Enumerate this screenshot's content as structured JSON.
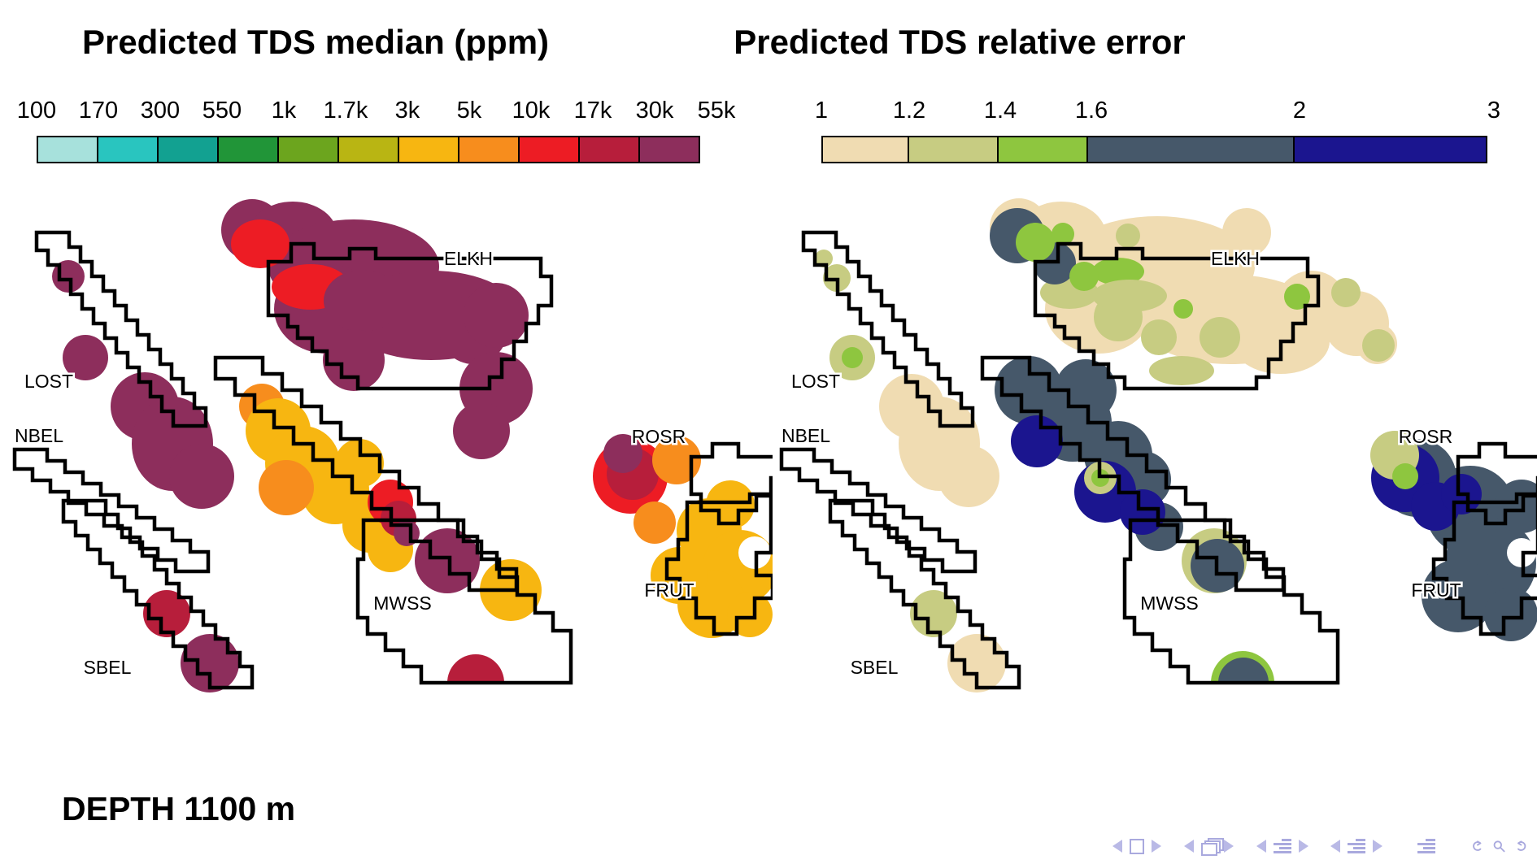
{
  "slide": {
    "depth_label": "DEPTH 1100 m"
  },
  "panels": [
    {
      "title": "Predicted TDS median (ppm)",
      "colorbar": {
        "tick_labels": [
          "100",
          "170",
          "300",
          "550",
          "1k",
          "1.7k",
          "3k",
          "5k",
          "10k",
          "17k",
          "30k",
          "55k"
        ],
        "colors": [
          "#a7e1dc",
          "#29c5bf",
          "#12a191",
          "#219538",
          "#6ca51e",
          "#b9b513",
          "#f7b611",
          "#f78d1d",
          "#ed1c24",
          "#b71e3b",
          "#8d2e5c"
        ]
      }
    },
    {
      "title": "Predicted TDS relative error",
      "colorbar": {
        "tick_labels": [
          "1",
          "1.2",
          "1.4",
          "1.6",
          "2",
          "3"
        ],
        "colors": [
          "#f0dcb2",
          "#c7cc82",
          "#8ec63f",
          "#46586a",
          "#1b158f"
        ]
      }
    }
  ],
  "region_labels": [
    "ELKH",
    "LOST",
    "NBEL",
    "ROSR",
    "MWSS",
    "FRUT",
    "SBEL"
  ],
  "nav_icons": [
    "prev-slide",
    "current-frame-icon",
    "next-slide",
    "prev-frame",
    "frames-icon",
    "next-frame",
    "prev-subsection",
    "subsection-list-icon",
    "next-subsection",
    "prev-section",
    "section-list-icon",
    "next-section",
    "appendix-list-icon",
    "undo-navigation",
    "search",
    "redo-navigation"
  ]
}
